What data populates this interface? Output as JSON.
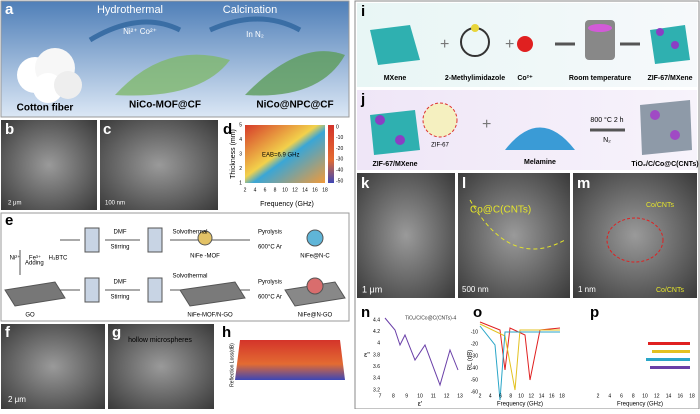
{
  "panel_labels": [
    "a",
    "b",
    "c",
    "d",
    "e",
    "f",
    "g",
    "h",
    "i",
    "j",
    "k",
    "l",
    "m",
    "n",
    "o",
    "p"
  ],
  "a": {
    "step1": "Hydrothermal",
    "step2": "Calcination",
    "ions": "Ni²⁺  Co²⁺",
    "atmosphere": "In N₂",
    "items": [
      "Cotton fiber",
      "NiCo-MOF@CF",
      "NiCo@NPC@CF"
    ]
  },
  "b": {
    "scale": "2 μm"
  },
  "c": {
    "scale": "100 nm"
  },
  "d": {
    "x_label": "Frequency (GHz)",
    "y_label": "Thickness (mm)",
    "annotation": "EAB=6.9 GHz",
    "xticks": [
      2,
      4,
      6,
      8,
      10,
      12,
      14,
      16,
      18
    ],
    "yticks": [
      1,
      2,
      3,
      4,
      5
    ],
    "colorbar": [
      0,
      -10,
      -20,
      -30,
      -40,
      -50
    ]
  },
  "e": {
    "ions": [
      "Ni²⁺",
      "Fe³⁺",
      "H₃BTC"
    ],
    "solvent": [
      "DMF",
      "DMF"
    ],
    "stirring": [
      "Stirring",
      "Stirring"
    ],
    "solvothermal": [
      "Solvothermal",
      "Solvothermal"
    ],
    "pyrolysis": [
      "Pyrolysis",
      "Pyrolysis"
    ],
    "conditions": [
      "600°C Ar",
      "600°C Ar"
    ],
    "adding": "Adding",
    "top_items": [
      "NiFe -MOF",
      "NiFe@N-C"
    ],
    "bottom_items": [
      "GO",
      "NiFe-MOF/N-GO",
      "NiFe@N-GO"
    ]
  },
  "f": {
    "scale": "2 μm"
  },
  "g": {
    "annotation": "hollow microspheres"
  },
  "h": {
    "y_label": "Reflection Loss(dB)"
  },
  "i": {
    "items": [
      "MXene",
      "2-Methylimidazole",
      "Co²⁺",
      "Room temperature",
      "ZIF-67/MXene"
    ]
  },
  "j": {
    "items": [
      "ZIF-67/MXene",
      "Melamine",
      "TiO₂/C/Co@C(CNTs)"
    ],
    "inset": "ZIF-67",
    "condition": "800 °C 2 h",
    "gas": "N₂"
  },
  "k": {
    "scale": "1 μm"
  },
  "l": {
    "scale": "500 nm",
    "annotation": "Co@C(CNTs)"
  },
  "m": {
    "scale": "1 nm",
    "annotations": [
      "Co/CNTs",
      "Co/CNTs"
    ]
  },
  "n": {
    "x_label": "ε'",
    "y_label": "ε''",
    "legend": "TiO₂/C/Co@C(CNTs)-4",
    "xticks": [
      7,
      8,
      9,
      10,
      11,
      12,
      13
    ],
    "yticks": [
      3.2,
      3.4,
      3.6,
      3.8,
      4.0,
      4.2,
      4.4
    ]
  },
  "o": {
    "x_label": "Frequency (GHz)",
    "y_label": "RL (dB)",
    "xticks": [
      2,
      4,
      6,
      8,
      10,
      12,
      14,
      16,
      18
    ],
    "yticks": [
      -10,
      -20,
      -30,
      -40,
      -50,
      -60
    ]
  },
  "p": {
    "x_label": "Frequency (GHz)",
    "xticks": [
      2,
      4,
      6,
      8,
      10,
      12,
      14,
      16,
      18
    ]
  }
}
